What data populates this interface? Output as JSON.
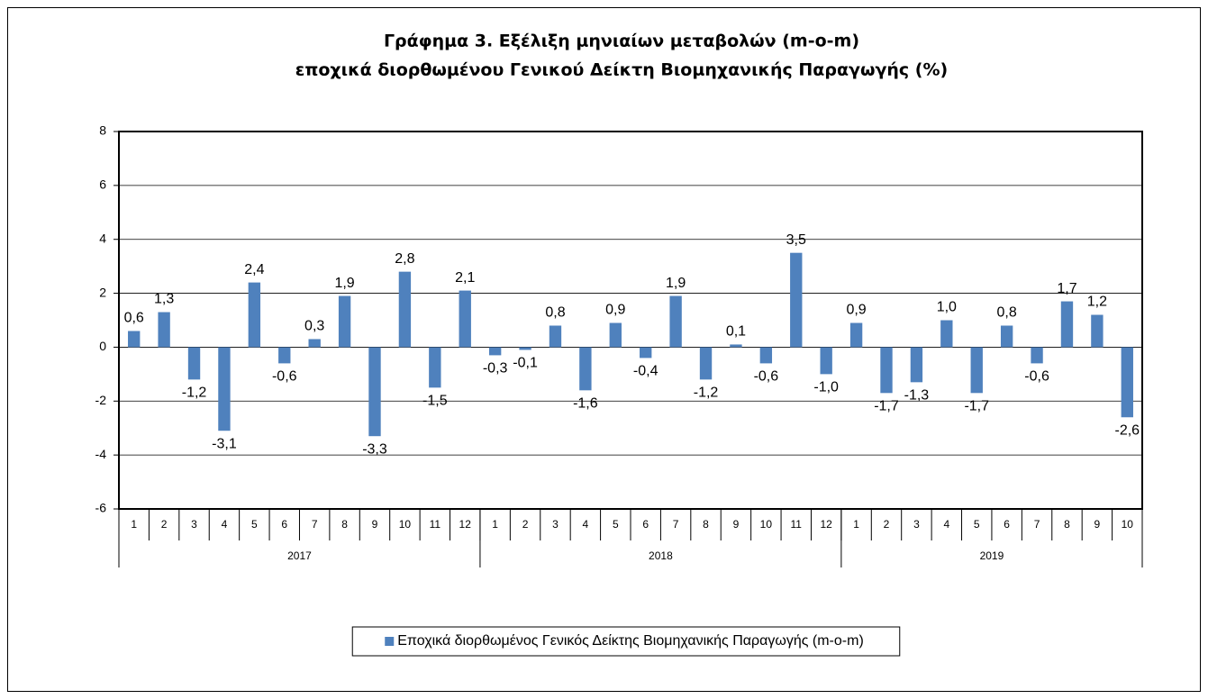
{
  "chart_data": {
    "type": "bar",
    "title": [
      "Γράφημα 3. Εξέλιξη μηνιαίων μεταβολών (m-o-m)",
      "εποχικά διορθωμένου Γενικού Δείκτη Βιομηχανικής Παραγωγής (%)"
    ],
    "groups": [
      {
        "label": "2017",
        "categories": [
          "1",
          "2",
          "3",
          "4",
          "5",
          "6",
          "7",
          "8",
          "9",
          "10",
          "11",
          "12"
        ]
      },
      {
        "label": "2018",
        "categories": [
          "1",
          "2",
          "3",
          "4",
          "5",
          "6",
          "7",
          "8",
          "9",
          "10",
          "11",
          "12"
        ]
      },
      {
        "label": "2019",
        "categories": [
          "1",
          "2",
          "3",
          "4",
          "5",
          "6",
          "7",
          "8",
          "9",
          "10"
        ]
      }
    ],
    "series": [
      {
        "name": "Εποχικά διορθωμένος Γενικός Δείκτης Βιομηχανικής Παραγωγής (m-o-m)",
        "color": "#4f81bd",
        "values": [
          0.6,
          1.3,
          -1.2,
          -3.1,
          2.4,
          -0.6,
          0.3,
          1.9,
          -3.3,
          2.8,
          -1.5,
          2.1,
          -0.3,
          -0.1,
          0.8,
          -1.6,
          0.9,
          -0.4,
          1.9,
          -1.2,
          0.1,
          -0.6,
          3.5,
          -1.0,
          0.9,
          -1.7,
          -1.3,
          1.0,
          -1.7,
          0.8,
          -0.6,
          1.7,
          1.2,
          -2.6
        ],
        "value_labels": [
          "0,6",
          "1,3",
          "-1,2",
          "-3,1",
          "2,4",
          "-0,6",
          "0,3",
          "1,9",
          "-3,3",
          "2,8",
          "-1,5",
          "2,1",
          "-0,3",
          "-0,1",
          "0,8",
          "-1,6",
          "0,9",
          "-0,4",
          "1,9",
          "-1,2",
          "0,1",
          "-0,6",
          "3,5",
          "-1,0",
          "0,9",
          "-1,7",
          "-1,3",
          "1,0",
          "-1,7",
          "0,8",
          "-0,6",
          "1,7",
          "1,2",
          "-2,6"
        ]
      }
    ],
    "ylim": [
      -6,
      8
    ],
    "yticks": [
      -6,
      -4,
      -2,
      0,
      2,
      4,
      6,
      8
    ],
    "grid": true,
    "legend": "bottom"
  }
}
